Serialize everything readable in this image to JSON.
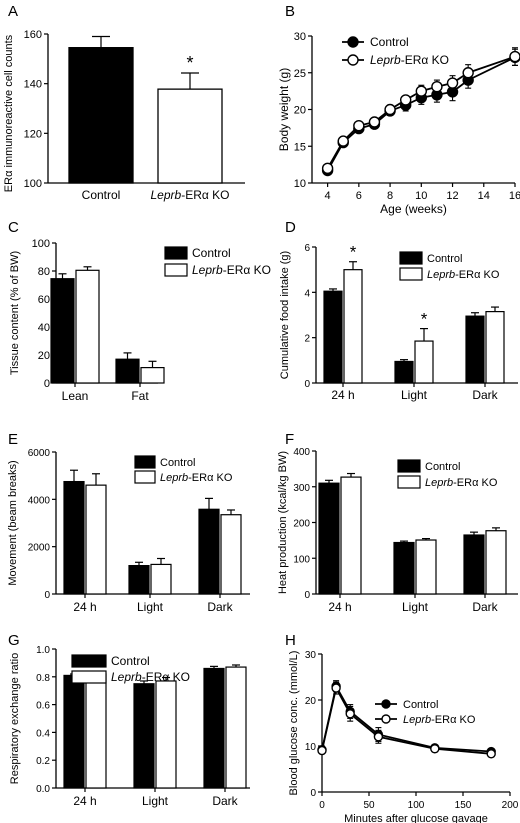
{
  "figure": {
    "panels": [
      "A",
      "B",
      "C",
      "D",
      "E",
      "F",
      "G",
      "H"
    ]
  },
  "chart_data": [
    {
      "panel": "A",
      "type": "bar",
      "categories": [
        "Control",
        "Leprb-ERα KO"
      ],
      "values": [
        154.5,
        137.8
      ],
      "errors": [
        4.5,
        6.5
      ],
      "fills": [
        "#000000",
        "#ffffff"
      ],
      "ylabel": "ERα immunoreactive cell counts",
      "ylim": [
        100,
        160
      ],
      "yticks": [
        100,
        120,
        140,
        160
      ],
      "significance": [
        "",
        "*"
      ]
    },
    {
      "panel": "B",
      "type": "line",
      "xlabel": "Age (weeks)",
      "ylabel": "Body weight (g)",
      "xlim": [
        3,
        16
      ],
      "ylim": [
        10,
        30
      ],
      "xticks": [
        4,
        6,
        8,
        10,
        12,
        14,
        16
      ],
      "yticks": [
        10,
        15,
        20,
        25,
        30
      ],
      "legend": "top-left",
      "series": [
        {
          "name": "Control",
          "marker": "filled",
          "x": [
            4,
            5,
            6,
            7,
            8,
            9,
            10,
            11,
            12,
            13,
            16
          ],
          "y": [
            11.7,
            15.5,
            17.4,
            18.0,
            19.8,
            20.6,
            21.6,
            22.0,
            22.4,
            24.0,
            27.1
          ],
          "err": [
            0.5,
            0.4,
            0.5,
            0.5,
            0.6,
            0.8,
            0.9,
            1.0,
            1.2,
            1.1,
            1.1
          ]
        },
        {
          "name": "Leprb-ERα KO",
          "marker": "open",
          "x": [
            4,
            5,
            6,
            7,
            8,
            9,
            10,
            11,
            12,
            13,
            16
          ],
          "y": [
            12.0,
            15.7,
            17.8,
            18.3,
            20.0,
            21.3,
            22.5,
            23.1,
            23.6,
            25.0,
            27.2
          ],
          "err": [
            0.5,
            0.4,
            0.5,
            0.5,
            0.6,
            0.6,
            0.8,
            0.9,
            1.0,
            1.1,
            1.2
          ]
        }
      ]
    },
    {
      "panel": "C",
      "type": "bar",
      "categories": [
        "Lean",
        "Fat"
      ],
      "ylabel": "Tissue content (% of BW)",
      "ylim": [
        0,
        100
      ],
      "yticks": [
        0,
        20,
        40,
        60,
        80,
        100
      ],
      "legend": "top-right",
      "series": [
        {
          "name": "Control",
          "values": [
            74.5,
            17.0
          ],
          "errors": [
            3.5,
            4.5
          ]
        },
        {
          "name": "Leprb-ERα KO",
          "values": [
            80.5,
            11.0
          ],
          "errors": [
            2.5,
            4.5
          ]
        }
      ],
      "significance": [
        [
          "",
          ""
        ],
        [
          "",
          ""
        ]
      ]
    },
    {
      "panel": "D",
      "type": "bar",
      "categories": [
        "24 h",
        "Light",
        "Dark"
      ],
      "ylabel": "Cumulative food intake (g)",
      "ylim": [
        0,
        6
      ],
      "yticks": [
        0,
        2,
        4,
        6
      ],
      "legend": "top-right",
      "series": [
        {
          "name": "Control",
          "values": [
            4.05,
            0.95,
            2.95
          ],
          "errors": [
            0.1,
            0.08,
            0.15
          ]
        },
        {
          "name": "Leprb-ERα KO",
          "values": [
            5.0,
            1.85,
            3.15
          ],
          "errors": [
            0.35,
            0.55,
            0.2
          ]
        }
      ],
      "significance": [
        [
          "",
          "*"
        ],
        [
          "",
          "*"
        ],
        [
          "",
          ""
        ]
      ]
    },
    {
      "panel": "E",
      "type": "bar",
      "categories": [
        "24 h",
        "Light",
        "Dark"
      ],
      "ylabel": "Movement (beam breaks)",
      "ylim": [
        0,
        6000
      ],
      "yticks": [
        0,
        2000,
        4000,
        6000
      ],
      "legend": "top-right",
      "series": [
        {
          "name": "Control",
          "values": [
            4750,
            1200,
            3580
          ],
          "errors": [
            480,
            140,
            460
          ]
        },
        {
          "name": "Leprb-ERα KO",
          "values": [
            4600,
            1250,
            3350
          ],
          "errors": [
            480,
            250,
            200
          ]
        }
      ],
      "significance": [
        [
          "",
          ""
        ],
        [
          "",
          ""
        ],
        [
          "",
          ""
        ]
      ]
    },
    {
      "panel": "F",
      "type": "bar",
      "categories": [
        "24 h",
        "Light",
        "Dark"
      ],
      "ylabel": "Heat production (kcal/kg BW)",
      "ylim": [
        0,
        400
      ],
      "yticks": [
        0,
        100,
        200,
        300,
        400
      ],
      "legend": "top-right",
      "series": [
        {
          "name": "Control",
          "values": [
            310,
            144,
            165
          ],
          "errors": [
            8,
            4,
            8
          ]
        },
        {
          "name": "Leprb-ERα KO",
          "values": [
            327,
            151,
            177
          ],
          "errors": [
            10,
            4,
            8
          ]
        }
      ],
      "significance": [
        [
          "",
          ""
        ],
        [
          "",
          ""
        ],
        [
          "",
          ""
        ]
      ]
    },
    {
      "panel": "G",
      "type": "bar",
      "categories": [
        "24 h",
        "Light",
        "Dark"
      ],
      "ylabel": "Respiratory exchange ratio",
      "ylim": [
        0,
        1.0
      ],
      "yticks": [
        0.0,
        0.2,
        0.4,
        0.6,
        0.8,
        1.0
      ],
      "legend": "top-left",
      "series": [
        {
          "name": "Control",
          "values": [
            0.81,
            0.75,
            0.86
          ],
          "errors": [
            0.01,
            0.02,
            0.015
          ]
        },
        {
          "name": "Leprb-ERα KO",
          "values": [
            0.82,
            0.77,
            0.87
          ],
          "errors": [
            0.015,
            0.025,
            0.015
          ]
        }
      ],
      "significance": [
        [
          "",
          ""
        ],
        [
          "",
          ""
        ],
        [
          "",
          ""
        ]
      ]
    },
    {
      "panel": "H",
      "type": "line",
      "xlabel": "Minutes after glucose gavage",
      "ylabel": "Blood glucose conc. (mmol/L)",
      "xlim": [
        0,
        200
      ],
      "ylim": [
        0,
        30
      ],
      "xticks": [
        0,
        50,
        100,
        150,
        200
      ],
      "yticks": [
        0,
        10,
        20,
        30
      ],
      "legend": "top-right",
      "series": [
        {
          "name": "Control",
          "marker": "filled",
          "x": [
            0,
            15,
            30,
            60,
            120,
            180
          ],
          "y": [
            9.2,
            23.0,
            17.5,
            12.5,
            9.6,
            8.8
          ],
          "err": [
            0.8,
            1.2,
            1.5,
            1.5,
            0.6,
            0.5
          ]
        },
        {
          "name": "Leprb-ERα KO",
          "marker": "open",
          "x": [
            0,
            15,
            30,
            60,
            120,
            180
          ],
          "y": [
            9.0,
            22.6,
            17.0,
            12.0,
            9.4,
            8.3
          ],
          "err": [
            0.7,
            1.3,
            1.6,
            1.4,
            0.6,
            0.5
          ]
        }
      ]
    }
  ]
}
